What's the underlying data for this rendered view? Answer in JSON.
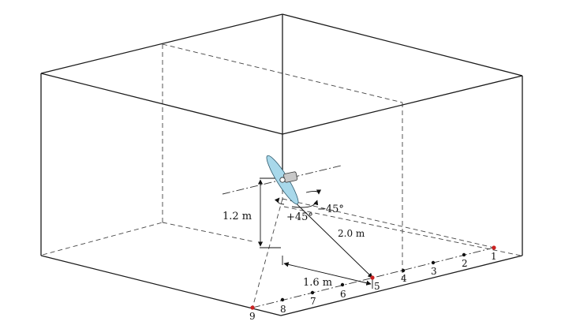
{
  "labels": {
    "height": "1.2 m",
    "distance": "2.0 m",
    "offset": "1.6 m",
    "angle_pos": "+45°",
    "angle_neg": "−45°"
  },
  "points": {
    "p1": "1",
    "p2": "2",
    "p3": "3",
    "p4": "4",
    "p5": "5",
    "p6": "6",
    "p7": "7",
    "p8": "8",
    "p9": "9"
  },
  "colors": {
    "propeller": "#a8d8ea",
    "motor": "#c8c8c8",
    "red_point": "#cc2222",
    "black_point": "#111111"
  }
}
